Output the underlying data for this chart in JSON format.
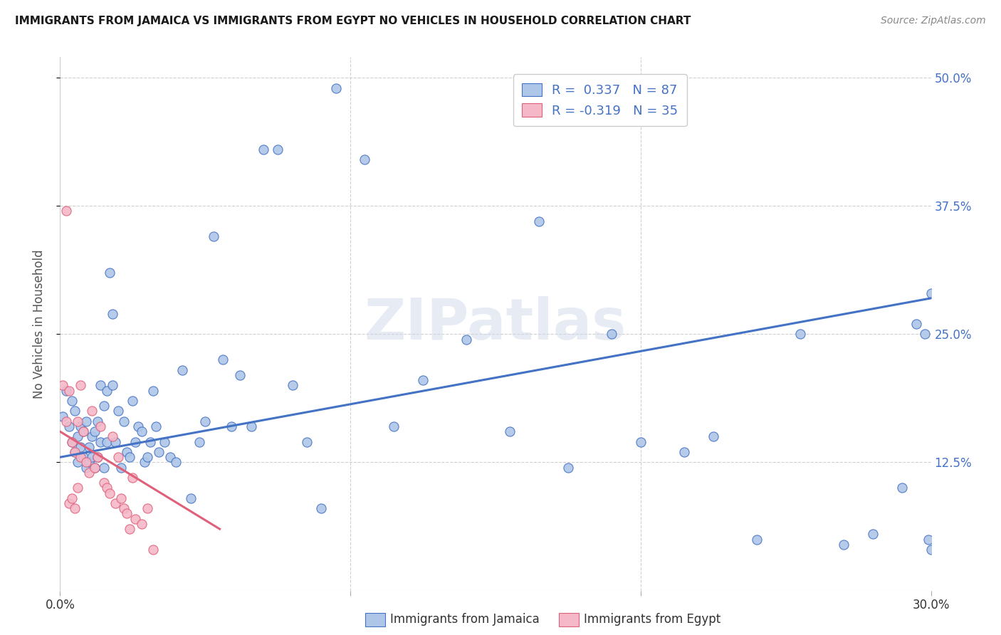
{
  "title": "IMMIGRANTS FROM JAMAICA VS IMMIGRANTS FROM EGYPT NO VEHICLES IN HOUSEHOLD CORRELATION CHART",
  "source": "Source: ZipAtlas.com",
  "ylabel": "No Vehicles in Household",
  "xlim": [
    0.0,
    0.3
  ],
  "ylim": [
    0.0,
    0.52
  ],
  "legend_r_jamaica": "R =  0.337",
  "legend_n_jamaica": "N = 87",
  "legend_r_egypt": "R = -0.319",
  "legend_n_egypt": "N = 35",
  "color_jamaica": "#aec6e8",
  "color_egypt": "#f4b8c8",
  "color_jamaica_line": "#4472C4",
  "color_egypt_line": "#e0607a",
  "watermark": "ZIPatlas",
  "jamaica_x": [
    0.001,
    0.002,
    0.003,
    0.004,
    0.004,
    0.005,
    0.005,
    0.006,
    0.006,
    0.007,
    0.007,
    0.008,
    0.008,
    0.009,
    0.009,
    0.01,
    0.01,
    0.011,
    0.011,
    0.012,
    0.012,
    0.013,
    0.013,
    0.014,
    0.014,
    0.015,
    0.015,
    0.016,
    0.016,
    0.017,
    0.018,
    0.018,
    0.019,
    0.02,
    0.021,
    0.022,
    0.023,
    0.024,
    0.025,
    0.026,
    0.027,
    0.028,
    0.029,
    0.03,
    0.031,
    0.032,
    0.033,
    0.034,
    0.036,
    0.038,
    0.04,
    0.042,
    0.045,
    0.048,
    0.05,
    0.053,
    0.056,
    0.059,
    0.062,
    0.066,
    0.07,
    0.075,
    0.08,
    0.085,
    0.09,
    0.095,
    0.105,
    0.115,
    0.125,
    0.14,
    0.155,
    0.165,
    0.175,
    0.19,
    0.2,
    0.215,
    0.225,
    0.24,
    0.255,
    0.27,
    0.28,
    0.29,
    0.295,
    0.298,
    0.299,
    0.3,
    0.3
  ],
  "jamaica_y": [
    0.17,
    0.195,
    0.16,
    0.145,
    0.185,
    0.135,
    0.175,
    0.15,
    0.125,
    0.14,
    0.16,
    0.13,
    0.155,
    0.12,
    0.165,
    0.14,
    0.125,
    0.15,
    0.13,
    0.155,
    0.12,
    0.165,
    0.13,
    0.145,
    0.2,
    0.18,
    0.12,
    0.145,
    0.195,
    0.31,
    0.27,
    0.2,
    0.145,
    0.175,
    0.12,
    0.165,
    0.135,
    0.13,
    0.185,
    0.145,
    0.16,
    0.155,
    0.125,
    0.13,
    0.145,
    0.195,
    0.16,
    0.135,
    0.145,
    0.13,
    0.125,
    0.215,
    0.09,
    0.145,
    0.165,
    0.345,
    0.225,
    0.16,
    0.21,
    0.16,
    0.43,
    0.43,
    0.2,
    0.145,
    0.08,
    0.49,
    0.42,
    0.16,
    0.205,
    0.245,
    0.155,
    0.36,
    0.12,
    0.25,
    0.145,
    0.135,
    0.15,
    0.05,
    0.25,
    0.045,
    0.055,
    0.1,
    0.26,
    0.25,
    0.05,
    0.29,
    0.04
  ],
  "egypt_x": [
    0.001,
    0.002,
    0.002,
    0.003,
    0.003,
    0.004,
    0.004,
    0.005,
    0.005,
    0.006,
    0.006,
    0.007,
    0.007,
    0.008,
    0.009,
    0.01,
    0.011,
    0.012,
    0.013,
    0.014,
    0.015,
    0.016,
    0.017,
    0.018,
    0.019,
    0.02,
    0.021,
    0.022,
    0.023,
    0.024,
    0.025,
    0.026,
    0.028,
    0.03,
    0.032
  ],
  "egypt_y": [
    0.2,
    0.165,
    0.37,
    0.085,
    0.195,
    0.09,
    0.145,
    0.135,
    0.08,
    0.165,
    0.1,
    0.13,
    0.2,
    0.155,
    0.125,
    0.115,
    0.175,
    0.12,
    0.13,
    0.16,
    0.105,
    0.1,
    0.095,
    0.15,
    0.085,
    0.13,
    0.09,
    0.08,
    0.075,
    0.06,
    0.11,
    0.07,
    0.065,
    0.08,
    0.04
  ],
  "jamaica_line_x": [
    0.0,
    0.3
  ],
  "jamaica_line_y": [
    0.13,
    0.285
  ],
  "egypt_line_x": [
    0.0,
    0.055
  ],
  "egypt_line_y": [
    0.155,
    0.06
  ],
  "background_color": "#ffffff",
  "grid_color": "#d0d0d0",
  "title_color": "#1a1a1a",
  "axis_color": "#4472C4",
  "bottom_legend_labels": [
    "Immigrants from Jamaica",
    "Immigrants from Egypt"
  ]
}
